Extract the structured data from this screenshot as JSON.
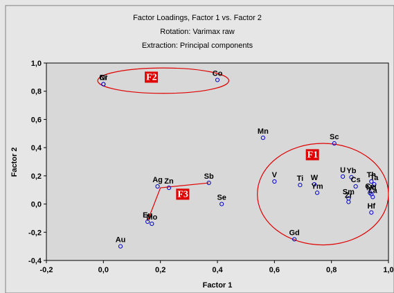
{
  "chart_data": {
    "type": "scatter",
    "title": "Factor Loadings, Factor 1 vs. Factor 2",
    "subtitle_lines": [
      "Rotation: Varimax raw",
      "Extraction: Principal components"
    ],
    "xlabel": "Factor 1",
    "ylabel": "Factor 2",
    "xlim": [
      -0.2,
      1.0
    ],
    "ylim": [
      -0.4,
      1.0
    ],
    "xticks": [
      -0.2,
      0.0,
      0.2,
      0.4,
      0.6,
      0.8,
      1.0
    ],
    "xtick_labels": [
      "-0,2",
      "0,0",
      "0,2",
      "0,4",
      "0,6",
      "0,8",
      "1,0"
    ],
    "yticks": [
      -0.4,
      -0.2,
      0.0,
      0.2,
      0.4,
      0.6,
      0.8,
      1.0
    ],
    "ytick_labels": [
      "-0,4",
      "-0,2",
      "0,0",
      "0,2",
      "0,4",
      "0,6",
      "0,8",
      "1,0"
    ],
    "grid": false,
    "plot_background": "#d8d8d8",
    "panel_background": "#e6e6e6",
    "marker_color": "#0000cc",
    "annotation_color": "#e00000",
    "points": [
      {
        "label": "Ni",
        "x": 0.0,
        "y": 0.85
      },
      {
        "label": "Cr",
        "x": 0.0,
        "y": 0.85
      },
      {
        "label": "Co",
        "x": 0.4,
        "y": 0.88
      },
      {
        "label": "Mn",
        "x": 0.56,
        "y": 0.47
      },
      {
        "label": "Sc",
        "x": 0.81,
        "y": 0.43
      },
      {
        "label": "V",
        "x": 0.6,
        "y": 0.16
      },
      {
        "label": "Ti",
        "x": 0.69,
        "y": 0.135
      },
      {
        "label": "W",
        "x": 0.74,
        "y": 0.14
      },
      {
        "label": "Ym",
        "x": 0.75,
        "y": 0.08
      },
      {
        "label": "U",
        "x": 0.84,
        "y": 0.195
      },
      {
        "label": "Yb",
        "x": 0.87,
        "y": 0.19
      },
      {
        "label": "Cs",
        "x": 0.885,
        "y": 0.125
      },
      {
        "label": "Th",
        "x": 0.94,
        "y": 0.16
      },
      {
        "label": "Ta",
        "x": 0.95,
        "y": 0.14
      },
      {
        "label": "Sm",
        "x": 0.86,
        "y": 0.04
      },
      {
        "label": "Zr",
        "x": 0.86,
        "y": 0.015
      },
      {
        "label": "Ce",
        "x": 0.935,
        "y": 0.08
      },
      {
        "label": "Nd",
        "x": 0.94,
        "y": 0.07
      },
      {
        "label": "La",
        "x": 0.945,
        "y": 0.05
      },
      {
        "label": "Hf",
        "x": 0.94,
        "y": -0.06
      },
      {
        "label": "Gd",
        "x": 0.67,
        "y": -0.25
      },
      {
        "label": "Ag",
        "x": 0.19,
        "y": 0.125
      },
      {
        "label": "Zn",
        "x": 0.23,
        "y": 0.115
      },
      {
        "label": "Sb",
        "x": 0.37,
        "y": 0.15
      },
      {
        "label": "Se",
        "x": 0.415,
        "y": 0.0
      },
      {
        "label": "Eu",
        "x": 0.155,
        "y": -0.125
      },
      {
        "label": "Mo",
        "x": 0.17,
        "y": -0.14
      },
      {
        "label": "Au",
        "x": 0.06,
        "y": -0.3
      }
    ],
    "annotations": [
      {
        "label": "F1",
        "shape": "ellipse",
        "cx": 0.77,
        "cy": 0.07,
        "rx": 0.23,
        "ry": 0.36,
        "label_x": 0.715,
        "label_y": 0.33
      },
      {
        "label": "F2",
        "shape": "ellipse",
        "cx": 0.21,
        "cy": 0.875,
        "rx": 0.23,
        "ry": 0.09,
        "label_x": 0.15,
        "label_y": 0.88
      },
      {
        "label": "F3",
        "shape": "polyline",
        "points": [
          [
            0.155,
            -0.12
          ],
          [
            0.2,
            0.115
          ],
          [
            0.37,
            0.15
          ]
        ],
        "label_x": 0.26,
        "label_y": 0.05
      }
    ]
  }
}
